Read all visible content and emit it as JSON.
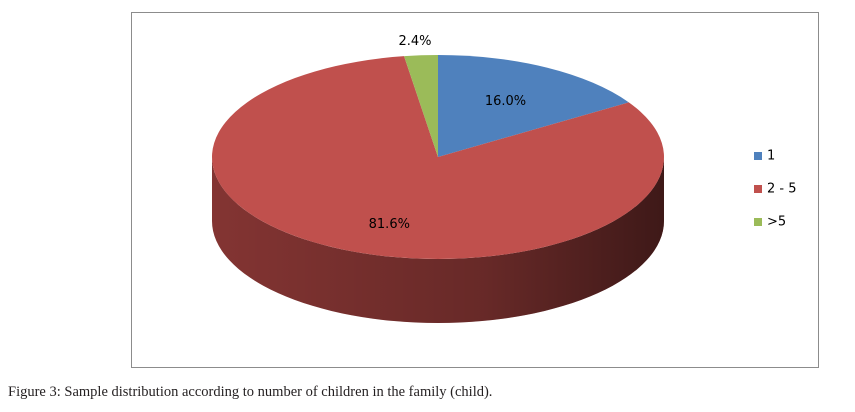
{
  "chart_data": {
    "type": "pie",
    "style": "3d",
    "categories": [
      "1",
      "2 - 5",
      ">5"
    ],
    "values": [
      16.0,
      81.6,
      2.4
    ],
    "data_labels": [
      "16.0%",
      "81.6%",
      "2.4%"
    ],
    "colors": [
      "#4f81bd",
      "#c0504d",
      "#9bbb59"
    ],
    "side_colors": [
      "#3a6390",
      "#8a3735",
      "#74913f"
    ],
    "legend": {
      "position": "right",
      "entries": [
        "1",
        "2 - 5",
        ">5"
      ]
    }
  },
  "caption": "Figure 3: Sample distribution according to number of children in the family (child)."
}
